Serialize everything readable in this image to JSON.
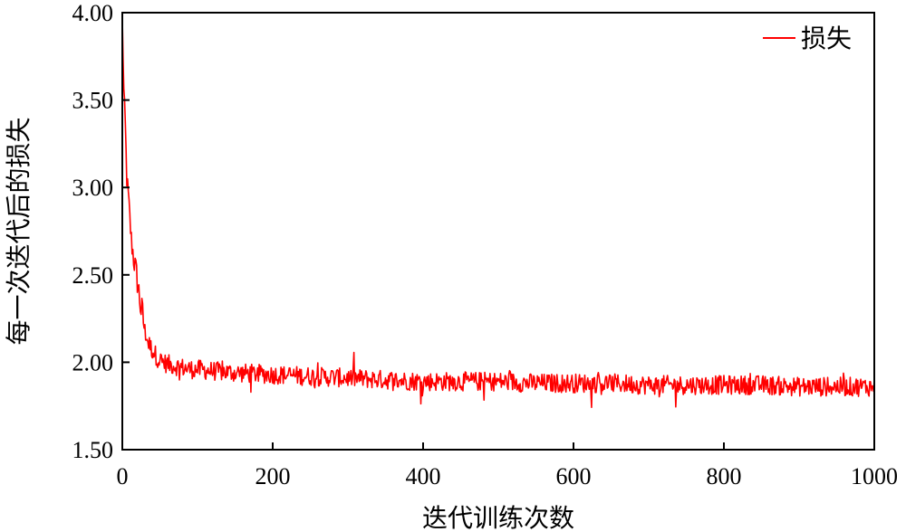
{
  "chart_data": {
    "type": "line",
    "xlabel": "迭代训练次数",
    "ylabel": "每一次迭代后的损失",
    "xlim": [
      0,
      1000
    ],
    "ylim": [
      1.5,
      4.0
    ],
    "xticks": [
      0,
      200,
      400,
      600,
      800,
      1000
    ],
    "xtick_labels": [
      "0",
      "200",
      "400",
      "600",
      "800",
      "1000"
    ],
    "yticks": [
      1.5,
      2.0,
      2.5,
      3.0,
      3.5,
      4.0
    ],
    "ytick_labels": [
      "1.50",
      "2.00",
      "2.50",
      "3.00",
      "3.50",
      "4.00"
    ],
    "grid": false,
    "legend": {
      "position": "top-right"
    },
    "series": [
      {
        "name": "损失",
        "color": "#ff0000",
        "x": [
          0,
          2,
          4,
          6,
          8,
          10,
          12,
          15,
          18,
          20,
          22,
          25,
          28,
          30,
          33,
          36,
          40,
          43,
          46,
          50,
          55,
          60,
          70,
          80,
          90,
          100,
          120,
          150,
          200,
          250,
          300,
          350,
          400,
          450,
          500,
          550,
          600,
          650,
          700,
          750,
          800,
          850,
          900,
          950,
          1000
        ],
        "y": [
          3.97,
          3.55,
          3.35,
          3.05,
          2.95,
          2.82,
          2.7,
          2.6,
          2.52,
          2.47,
          2.4,
          2.3,
          2.24,
          2.18,
          2.13,
          2.1,
          2.07,
          2.05,
          2.03,
          2.01,
          2.0,
          1.99,
          1.98,
          1.97,
          1.96,
          1.96,
          1.95,
          1.94,
          1.93,
          1.92,
          1.91,
          1.9,
          1.89,
          1.89,
          1.89,
          1.88,
          1.88,
          1.88,
          1.87,
          1.87,
          1.87,
          1.87,
          1.86,
          1.86,
          1.86
        ]
      }
    ]
  }
}
